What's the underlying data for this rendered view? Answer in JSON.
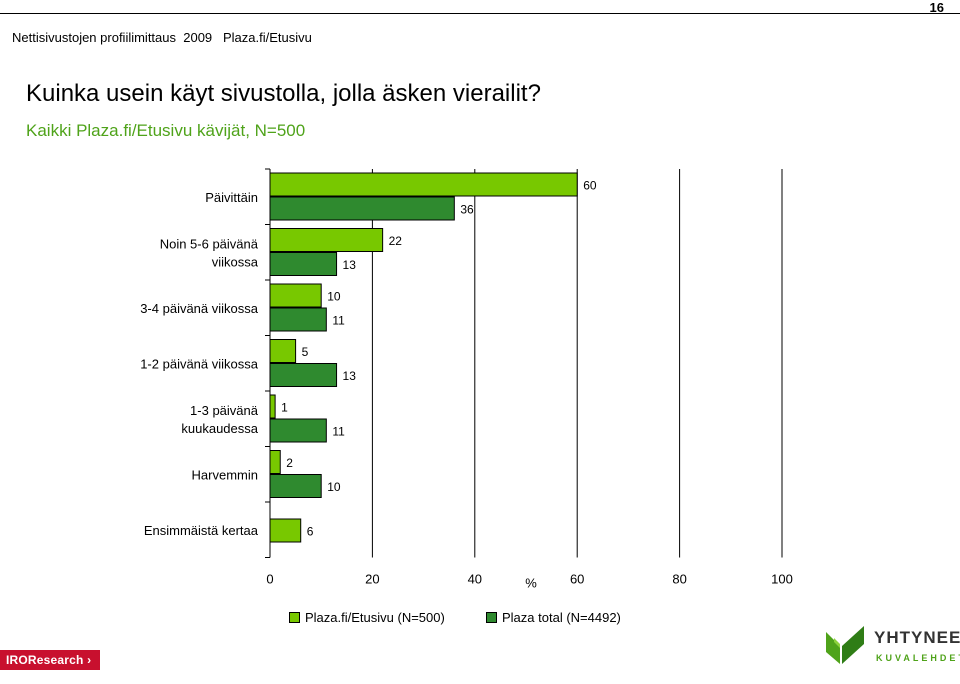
{
  "page_number": "16",
  "header": {
    "breadcrumb": "Nettisivustojen profiilimittaus  2009   Plaza.fi/Etusivu"
  },
  "title": "Kuinka usein käyt sivustolla, jolla äsken vierailit?",
  "subtitle": "Kaikki Plaza.fi/Etusivu kävijät, N=500",
  "chart_data": {
    "type": "bar",
    "orientation": "horizontal",
    "categories": [
      [
        "Päivittäin"
      ],
      [
        "Noin 5-6 päivänä",
        "viikossa"
      ],
      [
        "3-4 päivänä viikossa"
      ],
      [
        "1-2 päivänä viikossa"
      ],
      [
        "1-3 päivänä",
        "kuukaudessa"
      ],
      [
        "Harvemmin"
      ],
      [
        "Ensimmäistä kertaa"
      ]
    ],
    "series": [
      {
        "name": "Plaza.fi/Etusivu (N=500)",
        "color": "#78c800",
        "values": [
          60,
          22,
          10,
          5,
          1,
          2,
          6
        ]
      },
      {
        "name": "Plaza total (N=4492)",
        "color": "#2f8a2f",
        "values": [
          36,
          13,
          11,
          13,
          11,
          10,
          null
        ]
      }
    ],
    "xlabel": "%",
    "xlim": [
      0,
      100
    ],
    "xticks": [
      "0",
      "20",
      "40",
      "60",
      "80",
      "100"
    ],
    "grid": "vertical",
    "legend_position": "bottom"
  },
  "logos": {
    "iro": "IROResearch",
    "yhtyneet": "YHTYNEET",
    "kuvalehdet": "KUVALEHDET"
  }
}
